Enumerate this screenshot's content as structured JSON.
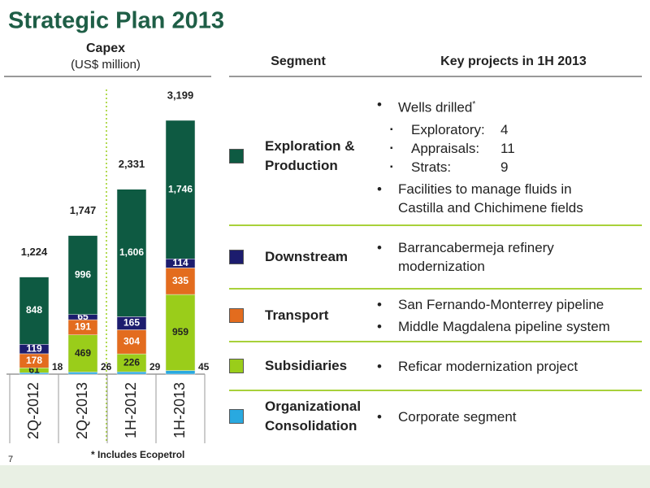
{
  "header": {
    "title": "Strategic Plan 2013",
    "page_number": "7",
    "footnote": "* Includes Ecopetrol"
  },
  "chart_data": {
    "type": "stacked-bar",
    "title": "Capex",
    "subtitle": "(US$ million)",
    "categories": [
      "2Q-2012",
      "2Q-2013",
      "1H-2012",
      "1H-2013"
    ],
    "series": [
      {
        "name": "Organizational Consolidation",
        "color": "#29a9e0",
        "values": [
          18,
          26,
          29,
          45
        ]
      },
      {
        "name": "Subsidiaries",
        "color": "#9acd1a",
        "values": [
          61,
          469,
          226,
          959
        ]
      },
      {
        "name": "Transport",
        "color": "#e36c1e",
        "values": [
          178,
          191,
          304,
          335
        ]
      },
      {
        "name": "Downstream",
        "color": "#1c1c6e",
        "values": [
          119,
          65,
          165,
          114
        ]
      },
      {
        "name": "Exploration & Production",
        "color": "#0e5a42",
        "values": [
          848,
          996,
          1606,
          1746
        ]
      }
    ],
    "totals": [
      1224,
      1747,
      2331,
      3199
    ],
    "total_labels": [
      "1,224",
      "1,747",
      "2,331",
      "3,199"
    ],
    "value_labels": [
      null,
      null,
      null,
      null,
      [
        "848",
        "996",
        "1,606",
        "1,746"
      ]
    ]
  },
  "table": {
    "headers": [
      "Segment",
      "Key projects in 1H 2013"
    ],
    "rows": [
      {
        "items": [
          {
            "text": "Wells drilled",
            "sup": "*",
            "sub": [
              {
                "label": "Exploratory:",
                "value": 4
              },
              {
                "label": "Appraisals:",
                "value": 11
              },
              {
                "label": "Strats:",
                "value": 9
              }
            ]
          },
          {
            "text": "Facilities to manage fluids in Castilla and Chichimene fields"
          }
        ]
      },
      {
        "items": [
          {
            "text": "Barrancabermeja refinery modernization"
          }
        ]
      },
      {
        "items": [
          {
            "text": "San Fernando-Monterrey pipeline"
          },
          {
            "text": "Middle Magdalena pipeline system"
          }
        ]
      },
      {
        "items": [
          {
            "text": "Reficar modernization project"
          }
        ]
      },
      {
        "items": [
          {
            "text": "Corporate segment"
          }
        ]
      }
    ]
  }
}
